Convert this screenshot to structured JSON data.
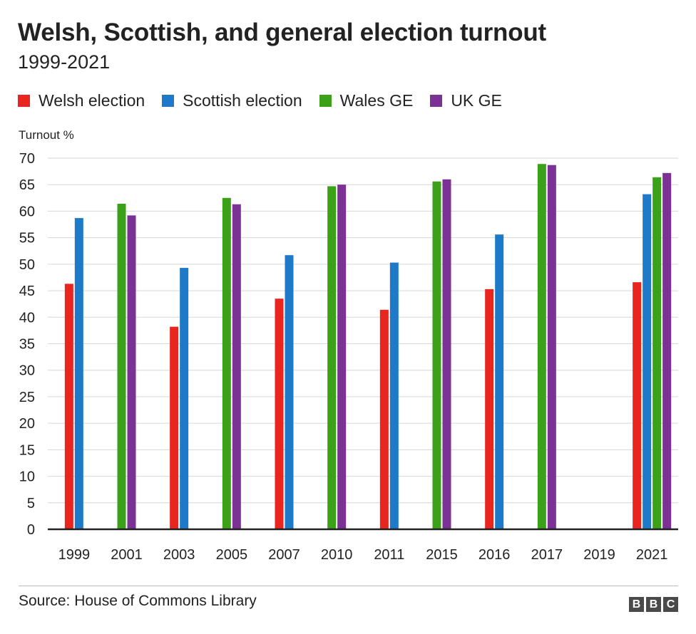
{
  "title": "Welsh, Scottish, and general election turnout",
  "subtitle": "1999-2021",
  "source": "Source: House of Commons Library",
  "logo": {
    "letters": [
      "B",
      "B",
      "C"
    ]
  },
  "legend": [
    {
      "label": "Welsh election",
      "color": "#e8251e"
    },
    {
      "label": "Scottish election",
      "color": "#1e7ac8"
    },
    {
      "label": "Wales GE",
      "color": "#3aa118"
    },
    {
      "label": "UK GE",
      "color": "#7b3294"
    }
  ],
  "chart_data": {
    "type": "bar",
    "title": "Welsh, Scottish, and general election turnout",
    "subtitle": "1999-2021",
    "ylabel": "Turnout %",
    "xlabel": "",
    "ylim": [
      0,
      70
    ],
    "yticks": [
      0,
      5,
      10,
      15,
      20,
      25,
      30,
      35,
      40,
      45,
      50,
      55,
      60,
      65,
      70
    ],
    "grid": true,
    "legend_position": "top",
    "categories": [
      "1999",
      "2001",
      "2003",
      "2005",
      "2007",
      "2010",
      "2011",
      "2015",
      "2016",
      "2017",
      "2019",
      "2021"
    ],
    "series": [
      {
        "name": "Welsh election",
        "color": "#e8251e",
        "values": [
          46.3,
          null,
          38.2,
          null,
          43.5,
          null,
          41.4,
          null,
          45.3,
          null,
          null,
          46.6
        ]
      },
      {
        "name": "Scottish election",
        "color": "#1e7ac8",
        "values": [
          58.7,
          null,
          49.3,
          null,
          51.7,
          null,
          50.3,
          null,
          55.6,
          null,
          null,
          63.2
        ]
      },
      {
        "name": "Wales GE",
        "color": "#3aa118",
        "values": [
          null,
          61.4,
          null,
          62.5,
          null,
          64.7,
          null,
          65.6,
          null,
          68.9,
          null,
          66.4
        ]
      },
      {
        "name": "UK GE",
        "color": "#7b3294",
        "values": [
          null,
          59.2,
          null,
          61.3,
          null,
          65.0,
          null,
          66.0,
          null,
          68.7,
          null,
          67.2
        ]
      }
    ]
  }
}
